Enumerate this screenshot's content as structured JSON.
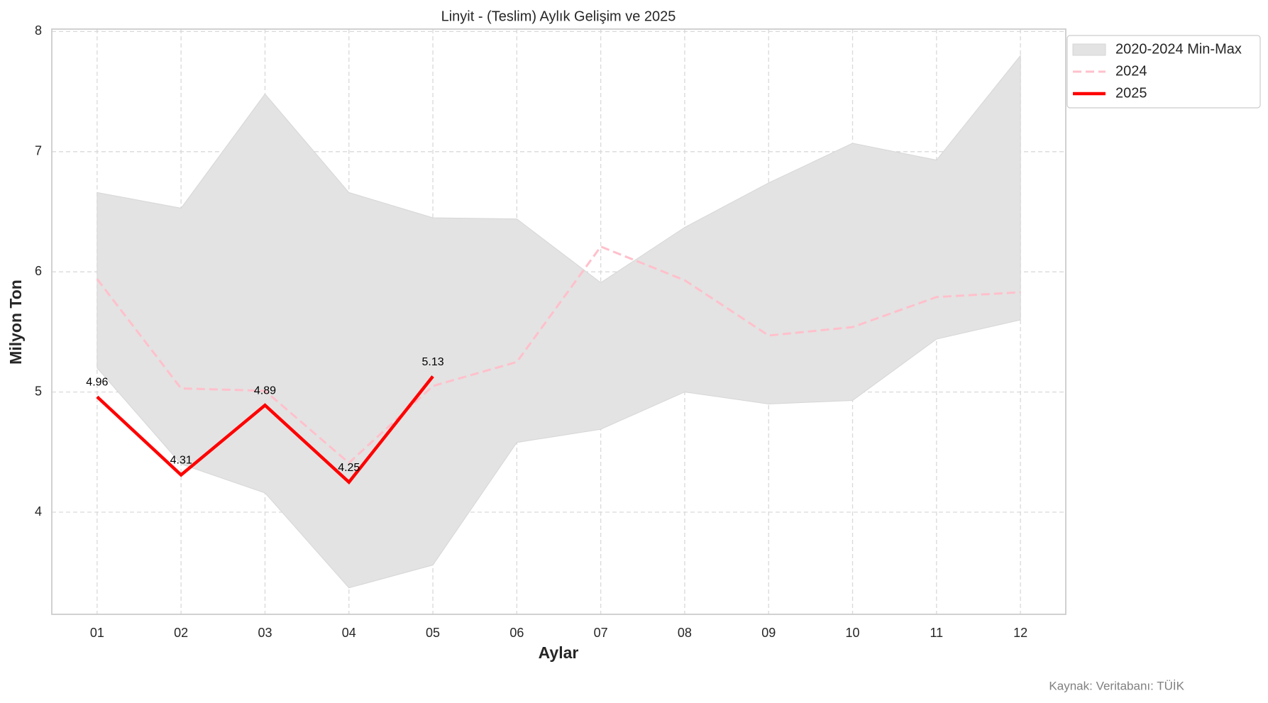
{
  "chart_data": {
    "type": "line",
    "title": "Linyit - (Teslim) Aylık Gelişim ve 2025",
    "x_label": "Aylar",
    "y_label": "Milyon Ton",
    "source": "Kaynak: Veritabanı: TÜİK",
    "categories": [
      "01",
      "02",
      "03",
      "04",
      "05",
      "06",
      "07",
      "08",
      "09",
      "10",
      "11",
      "12"
    ],
    "series": [
      {
        "name": "2020-2024 Min-Max",
        "kind": "band",
        "color": "#e3e3e3",
        "lower": [
          5.2,
          4.4,
          4.16,
          3.37,
          3.56,
          4.58,
          4.69,
          5.0,
          4.9,
          4.93,
          5.44,
          5.6
        ],
        "upper": [
          6.66,
          6.53,
          7.48,
          6.66,
          6.45,
          6.44,
          5.91,
          6.37,
          6.74,
          7.07,
          6.93,
          7.8
        ]
      },
      {
        "name": "2024",
        "kind": "line",
        "color": "#ffc0cb",
        "dashed": true,
        "values": [
          5.94,
          5.03,
          5.01,
          4.41,
          5.05,
          5.25,
          6.21,
          5.93,
          5.47,
          5.54,
          5.79,
          5.83
        ]
      },
      {
        "name": "2025",
        "kind": "line",
        "color": "#ff0000",
        "dashed": false,
        "data_labels": true,
        "values": [
          4.96,
          4.31,
          4.89,
          4.25,
          5.13,
          null,
          null,
          null,
          null,
          null,
          null,
          null
        ]
      }
    ],
    "ylim": [
      3.15,
      8.02
    ],
    "yticks": [
      4,
      5,
      6,
      7,
      8
    ],
    "grid": true,
    "legend": "upper right outside"
  }
}
